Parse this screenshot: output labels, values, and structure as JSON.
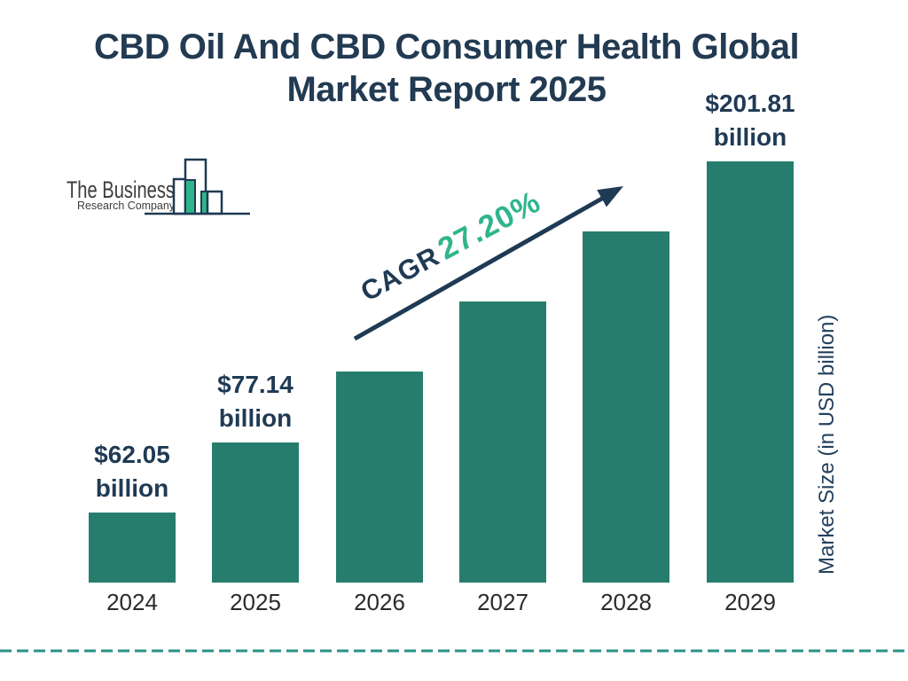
{
  "title": {
    "line1": "CBD Oil And CBD Consumer Health Global",
    "line2": "Market Report 2025"
  },
  "logo": {
    "name_line1": "The Business",
    "name_line2": "Research Company"
  },
  "annotation": {
    "cagr_label": "CAGR",
    "cagr_value": "27.20%"
  },
  "y_axis_label": "Market Size (in USD billion)",
  "colors": {
    "navy_text": "#223A52",
    "bar_teal": "#277D6D",
    "accent_green": "#2FB58C",
    "dashed_line_teal": "#2A9185",
    "year_text": "#2B2B2B"
  },
  "chart_data": {
    "type": "bar",
    "title": "CBD Oil And CBD Consumer Health Global Market Report 2025",
    "categories": [
      "2024",
      "2025",
      "2026",
      "2027",
      "2028",
      "2029"
    ],
    "values": [
      62.05,
      77.14,
      null,
      null,
      null,
      201.81
    ],
    "value_labels": [
      [
        "$62.05",
        "billion"
      ],
      [
        "$77.14",
        "billion"
      ],
      null,
      null,
      null,
      [
        "$201.81",
        "billion"
      ]
    ],
    "unit": "USD billion",
    "ylabel": "Market Size (in USD billion)",
    "cagr": "27.20%",
    "bar_color": "#277D6D",
    "layout_hints": {
      "grid": false,
      "legend": false,
      "bars_stylized_equal_increments": true,
      "only_first_second_last_labeled": true,
      "trend_arrow": "diagonal up-right with CAGR annotation",
      "bottom_border": "teal dashed line"
    }
  }
}
